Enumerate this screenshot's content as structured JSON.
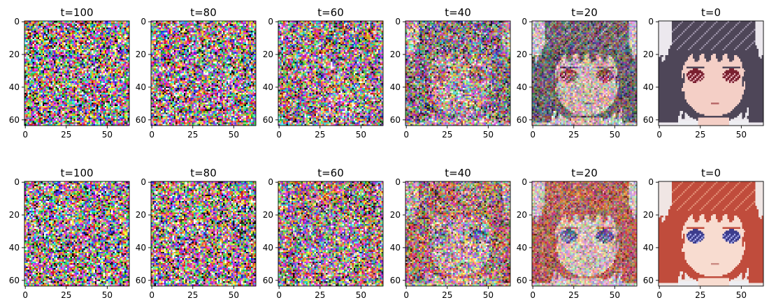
{
  "chart_data": {
    "type": "image-grid",
    "rows": 2,
    "columns": 6,
    "axes": {
      "x_ticks": [
        "0",
        "25",
        "50"
      ],
      "x_tick_values": [
        0,
        25,
        50
      ],
      "y_ticks": [
        "0",
        "20",
        "40",
        "60"
      ],
      "y_tick_values": [
        0,
        20,
        40,
        60
      ],
      "xlim": [
        -0.5,
        63.5
      ],
      "ylim": [
        63.5,
        -0.5
      ],
      "grid": false
    },
    "panels": [
      {
        "title": "t=100",
        "t": 100,
        "noise_level": 1.0,
        "image": "pure-noise"
      },
      {
        "title": "t=80",
        "t": 80,
        "noise_level": 0.97,
        "image": "noisy-anime-face-dark-hair"
      },
      {
        "title": "t=60",
        "t": 60,
        "noise_level": 0.9,
        "image": "noisy-anime-face-dark-hair"
      },
      {
        "title": "t=40",
        "t": 40,
        "noise_level": 0.72,
        "image": "noisy-anime-face-dark-hair"
      },
      {
        "title": "t=20",
        "t": 20,
        "noise_level": 0.45,
        "image": "noisy-anime-face-dark-hair"
      },
      {
        "title": "t=0",
        "t": 0,
        "noise_level": 0.0,
        "image": "anime-face-dark-hair-red-eyes"
      },
      {
        "title": "t=100",
        "t": 100,
        "noise_level": 1.0,
        "image": "pure-noise"
      },
      {
        "title": "t=80",
        "t": 80,
        "noise_level": 0.97,
        "image": "noisy-anime-face-red-hair"
      },
      {
        "title": "t=60",
        "t": 60,
        "noise_level": 0.88,
        "image": "noisy-anime-face-red-hair"
      },
      {
        "title": "t=40",
        "t": 40,
        "noise_level": 0.68,
        "image": "noisy-anime-face-red-hair"
      },
      {
        "title": "t=20",
        "t": 20,
        "noise_level": 0.42,
        "image": "noisy-anime-face-red-hair"
      },
      {
        "title": "t=0",
        "t": 0,
        "noise_level": 0.0,
        "image": "anime-face-red-hair-blue-eyes"
      }
    ],
    "faces": {
      "dark": {
        "background": "#ece8ee",
        "hair": "#4e4658",
        "hair_highlight": "#9a90a6",
        "skin": "#f4cfc6",
        "eye": "#7a2030",
        "eye_light": "#e8b4bc",
        "mouth": "#b86a6a"
      },
      "red": {
        "background": "#f0e6e4",
        "hair": "#c04c3c",
        "hair_highlight": "#e08a72",
        "skin": "#f8dcd0",
        "eye": "#3c3c8c",
        "eye_light": "#a8acec",
        "mouth": "#cc8c84"
      }
    }
  }
}
